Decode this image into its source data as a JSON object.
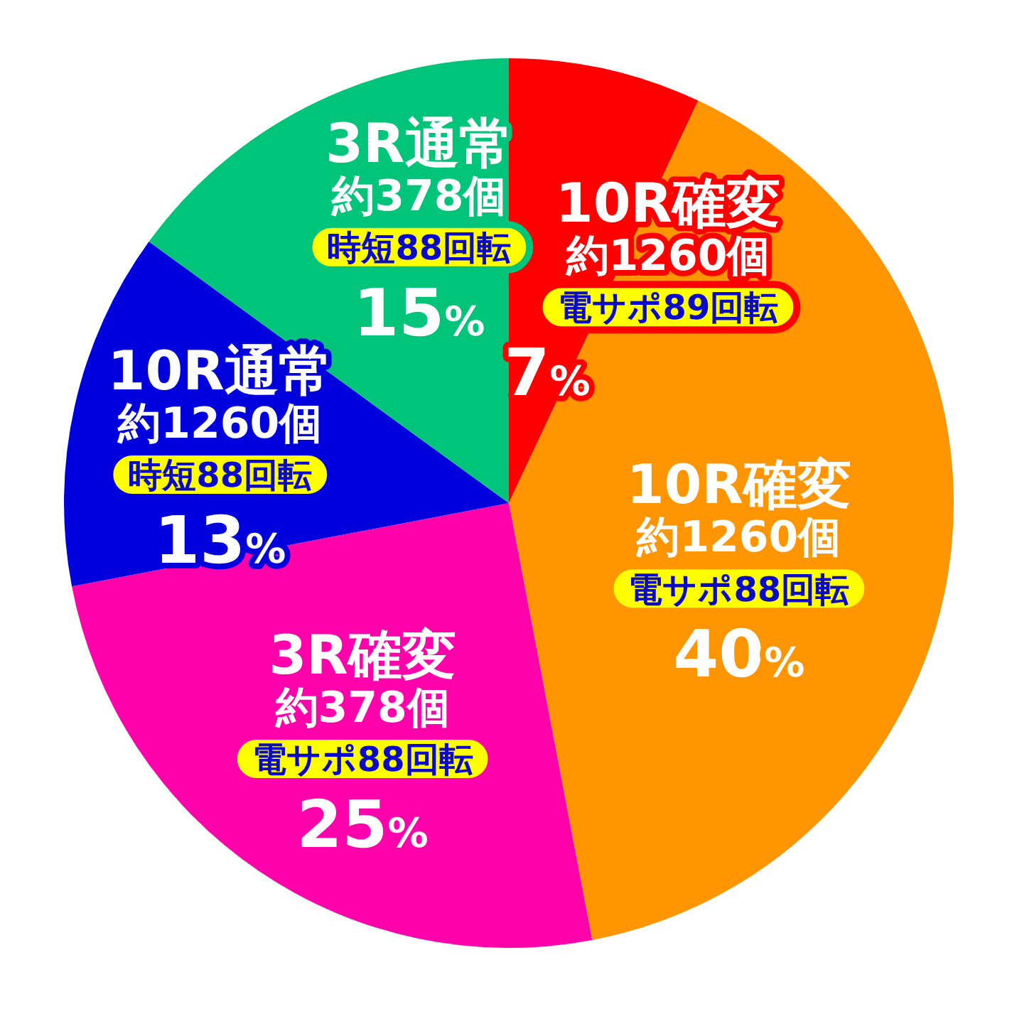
{
  "chart_data": {
    "type": "pie",
    "categories": [
      "10R確変",
      "10R確変",
      "3R確変",
      "10R通常",
      "3R通常"
    ],
    "values": [
      7,
      40,
      25,
      13,
      15
    ],
    "colors": [
      "#ff0000",
      "#ff9500",
      "#ff00aa",
      "#0000dd",
      "#00c47a"
    ],
    "value_labels": [
      "7%",
      "40%",
      "25%",
      "13%",
      "15%"
    ],
    "annotations": [
      "約1260個",
      "電サポ89回転",
      "約1260個",
      "電サポ88回転",
      "約378個",
      "電サポ88回転",
      "約1260個",
      "時短88回転",
      "約378個",
      "時短88回転"
    ]
  }
}
